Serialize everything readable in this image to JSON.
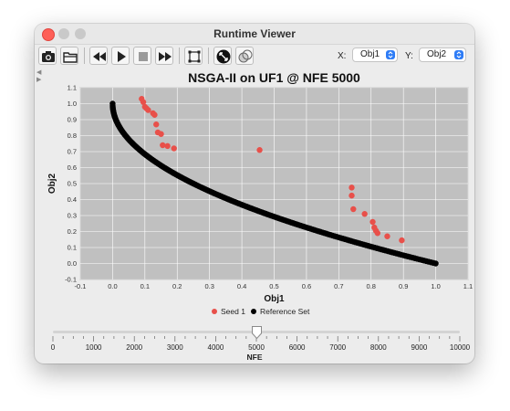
{
  "window": {
    "title": "Runtime Viewer"
  },
  "toolbar": {
    "buttons": [
      {
        "name": "camera-button",
        "icon": "camera-icon"
      },
      {
        "name": "open-folder-button",
        "icon": "folder-icon"
      },
      {
        "name": "rewind-button",
        "icon": "rewind-icon"
      },
      {
        "name": "play-button",
        "icon": "play-icon"
      },
      {
        "name": "stop-button",
        "icon": "stop-icon"
      },
      {
        "name": "fast-forward-button",
        "icon": "fast-forward-icon"
      },
      {
        "name": "fit-bounds-button",
        "icon": "fit-bounds-icon"
      },
      {
        "name": "zoom-in-button",
        "icon": "zoom-icon"
      },
      {
        "name": "compare-button",
        "icon": "overlap-circles-icon"
      }
    ],
    "x_label": "X:",
    "x_value": "Obj1",
    "y_label": "Y:",
    "y_value": "Obj2"
  },
  "chart_data": {
    "type": "scatter",
    "title": "NSGA-II on UF1 @ NFE 5000",
    "xlabel": "Obj1",
    "ylabel": "Obj2",
    "xlim": [
      -0.1,
      1.1
    ],
    "ylim": [
      -0.1,
      1.1
    ],
    "xticks": [
      "-0.1",
      "0.0",
      "0.1",
      "0.2",
      "0.3",
      "0.4",
      "0.5",
      "0.6",
      "0.7",
      "0.8",
      "0.9",
      "1.0",
      "1.1"
    ],
    "yticks": [
      "-0.1",
      "0.0",
      "0.1",
      "0.2",
      "0.3",
      "0.4",
      "0.5",
      "0.6",
      "0.7",
      "0.8",
      "0.9",
      "1.0",
      "1.1"
    ],
    "grid": true,
    "legend_position": "bottom",
    "series": [
      {
        "name": "Seed 1",
        "color": "#e8504a",
        "points": [
          [
            0.09,
            1.03
          ],
          [
            0.095,
            1.01
          ],
          [
            0.1,
            0.98
          ],
          [
            0.105,
            0.97
          ],
          [
            0.11,
            0.96
          ],
          [
            0.125,
            0.94
          ],
          [
            0.13,
            0.93
          ],
          [
            0.135,
            0.87
          ],
          [
            0.14,
            0.82
          ],
          [
            0.15,
            0.81
          ],
          [
            0.155,
            0.74
          ],
          [
            0.17,
            0.735
          ],
          [
            0.19,
            0.72
          ],
          [
            0.455,
            0.71
          ],
          [
            0.74,
            0.475
          ],
          [
            0.74,
            0.425
          ],
          [
            0.745,
            0.34
          ],
          [
            0.78,
            0.31
          ],
          [
            0.805,
            0.26
          ],
          [
            0.81,
            0.225
          ],
          [
            0.815,
            0.205
          ],
          [
            0.82,
            0.19
          ],
          [
            0.85,
            0.17
          ],
          [
            0.895,
            0.145
          ]
        ]
      },
      {
        "name": "Reference Set",
        "color": "#000000",
        "curve": "1 - sqrt(x)",
        "x_range": [
          0.0,
          1.0
        ]
      }
    ]
  },
  "slider": {
    "label": "NFE",
    "min": 0,
    "max": 10000,
    "value": 5000,
    "ticks": [
      "0",
      "1000",
      "2000",
      "3000",
      "4000",
      "5000",
      "6000",
      "7000",
      "8000",
      "9000",
      "10000"
    ]
  }
}
